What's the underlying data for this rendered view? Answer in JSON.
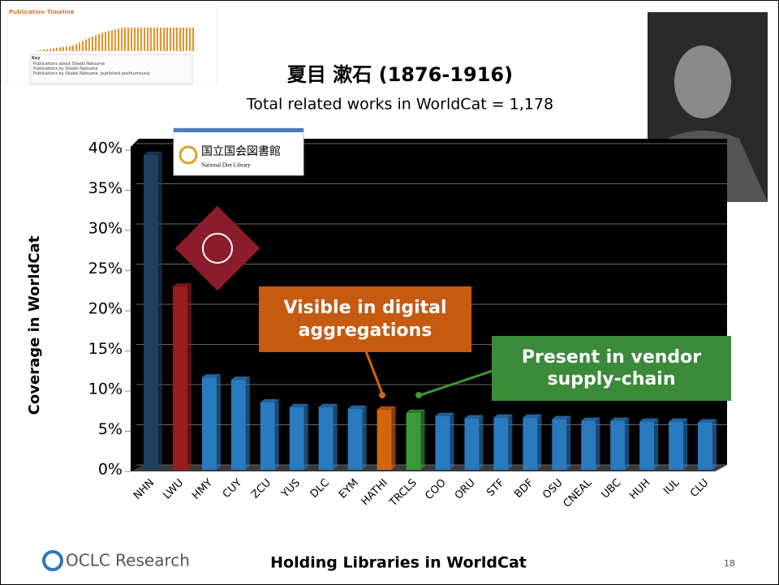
{
  "chart_data": {
    "type": "bar",
    "title": "夏目 漱石 (1876-1916)",
    "subtitle": "Total related works in WorldCat = 1,178",
    "y_label": "Coverage in WorldCat",
    "x_label": "Holding Libraries in WorldCat",
    "annotations": [
      "Visible in digital aggregations",
      "Present in vendor supply-chain"
    ],
    "categories": [
      "NHN",
      "LWU",
      "HMY",
      "CUY",
      "ZCU",
      "YUS",
      "DLC",
      "EYM",
      "HATHI",
      "TRCLS",
      "COO",
      "ORU",
      "STF",
      "BDF",
      "OSU",
      "CNEAL",
      "UBC",
      "HUH",
      "IUL",
      "CLU"
    ],
    "values": [
      39.2,
      22.8,
      11.5,
      11.2,
      8.4,
      7.8,
      7.8,
      7.6,
      7.5,
      7.1,
      6.7,
      6.4,
      6.5,
      6.5,
      6.3,
      6.1,
      6.1,
      6.0,
      6.0,
      5.9
    ],
    "colors": [
      "#1f3f63",
      "#9b1c1f",
      "#2a7ac0",
      "#2a7ac0",
      "#2a7ac0",
      "#2a7ac0",
      "#2a7ac0",
      "#2a7ac0",
      "#d4650f",
      "#3a9a3a",
      "#2a7ac0",
      "#2a7ac0",
      "#2a7ac0",
      "#2a7ac0",
      "#2a7ac0",
      "#2a7ac0",
      "#2a7ac0",
      "#2a7ac0",
      "#2a7ac0",
      "#2a7ac0"
    ],
    "ylim": [
      0,
      40
    ],
    "yticks": [
      {
        "value": 0,
        "label": "0%"
      },
      {
        "value": 5,
        "label": "5%"
      },
      {
        "value": 10,
        "label": "10%"
      },
      {
        "value": 15,
        "label": "15%"
      },
      {
        "value": 20,
        "label": "20%"
      },
      {
        "value": 25,
        "label": "25%"
      },
      {
        "value": 30,
        "label": "30%"
      },
      {
        "value": 35,
        "label": "35%"
      },
      {
        "value": 40,
        "label": "40%"
      }
    ],
    "grid": true
  },
  "timeline": {
    "title": "Publication Timeline",
    "key_title": "Key",
    "key_items": [
      "Publications about Sōseki Natsume",
      "Publications by Sōseki Natsume",
      "Publications by Sōseki Natsume, published posthumously"
    ]
  },
  "logos": {
    "ndl_name": "国立国会図書館",
    "ndl_english": "National Diet Library",
    "oclc": "OCLC Research"
  },
  "page_number": "18"
}
